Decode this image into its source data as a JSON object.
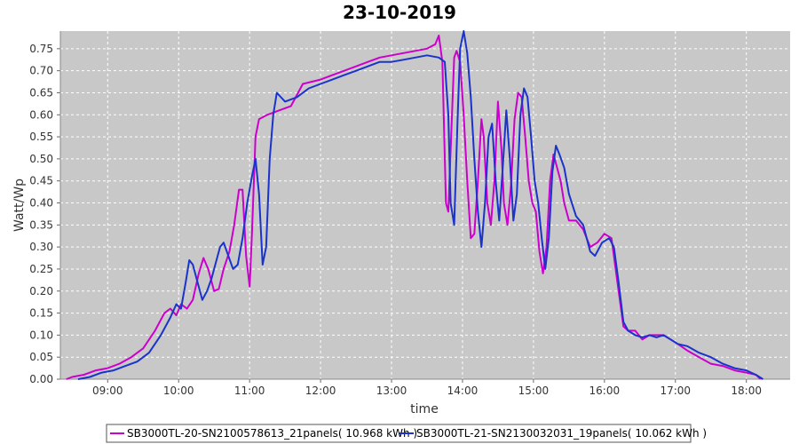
{
  "chart_data": {
    "type": "line",
    "title": "23-10-2019",
    "xlabel": "time",
    "ylabel": "Watt/Wp",
    "x_ticks": [
      "09:00",
      "10:00",
      "11:00",
      "12:00",
      "13:00",
      "14:00",
      "15:00",
      "16:00",
      "17:00",
      "18:00"
    ],
    "y_ticks": [
      "0.00",
      "0.05",
      "0.10",
      "0.15",
      "0.20",
      "0.25",
      "0.30",
      "0.35",
      "0.40",
      "0.45",
      "0.50",
      "0.55",
      "0.60",
      "0.65",
      "0.70",
      "0.75"
    ],
    "xlim": [
      "08:20",
      "18:37"
    ],
    "ylim": [
      0,
      0.79
    ],
    "grid": true,
    "legend_position": "bottom",
    "colors": {
      "plot_bg": "#c8c8c8",
      "grid": "#ffffff"
    },
    "series": [
      {
        "name": "SB3000TL-20-SN2100578613_21panels( 10.968 kWh )",
        "color": "#cc00cc",
        "points": [
          [
            "08:25",
            0.0
          ],
          [
            "08:30",
            0.005
          ],
          [
            "08:40",
            0.01
          ],
          [
            "08:50",
            0.02
          ],
          [
            "09:00",
            0.025
          ],
          [
            "09:10",
            0.035
          ],
          [
            "09:20",
            0.05
          ],
          [
            "09:30",
            0.07
          ],
          [
            "09:40",
            0.11
          ],
          [
            "09:48",
            0.15
          ],
          [
            "09:53",
            0.16
          ],
          [
            "09:58",
            0.145
          ],
          [
            "10:02",
            0.17
          ],
          [
            "10:07",
            0.16
          ],
          [
            "10:12",
            0.18
          ],
          [
            "10:17",
            0.24
          ],
          [
            "10:21",
            0.275
          ],
          [
            "10:25",
            0.25
          ],
          [
            "10:30",
            0.2
          ],
          [
            "10:34",
            0.205
          ],
          [
            "10:38",
            0.25
          ],
          [
            "10:43",
            0.29
          ],
          [
            "10:47",
            0.35
          ],
          [
            "10:51",
            0.43
          ],
          [
            "10:54",
            0.43
          ],
          [
            "10:57",
            0.28
          ],
          [
            "11:00",
            0.21
          ],
          [
            "11:02",
            0.33
          ],
          [
            "11:05",
            0.55
          ],
          [
            "11:08",
            0.59
          ],
          [
            "11:15",
            0.6
          ],
          [
            "11:25",
            0.61
          ],
          [
            "11:35",
            0.62
          ],
          [
            "11:45",
            0.67
          ],
          [
            "12:00",
            0.68
          ],
          [
            "12:10",
            0.69
          ],
          [
            "12:20",
            0.7
          ],
          [
            "12:30",
            0.71
          ],
          [
            "12:40",
            0.72
          ],
          [
            "12:50",
            0.73
          ],
          [
            "13:00",
            0.735
          ],
          [
            "13:10",
            0.74
          ],
          [
            "13:20",
            0.745
          ],
          [
            "13:30",
            0.75
          ],
          [
            "13:37",
            0.76
          ],
          [
            "13:40",
            0.78
          ],
          [
            "13:43",
            0.72
          ],
          [
            "13:46",
            0.4
          ],
          [
            "13:48",
            0.38
          ],
          [
            "13:50",
            0.52
          ],
          [
            "13:53",
            0.73
          ],
          [
            "13:55",
            0.745
          ],
          [
            "13:58",
            0.72
          ],
          [
            "14:01",
            0.6
          ],
          [
            "14:04",
            0.45
          ],
          [
            "14:07",
            0.32
          ],
          [
            "14:10",
            0.33
          ],
          [
            "14:13",
            0.45
          ],
          [
            "14:16",
            0.59
          ],
          [
            "14:18",
            0.55
          ],
          [
            "14:21",
            0.4
          ],
          [
            "14:24",
            0.35
          ],
          [
            "14:27",
            0.45
          ],
          [
            "14:30",
            0.63
          ],
          [
            "14:33",
            0.52
          ],
          [
            "14:35",
            0.4
          ],
          [
            "14:38",
            0.35
          ],
          [
            "14:41",
            0.44
          ],
          [
            "14:44",
            0.59
          ],
          [
            "14:47",
            0.65
          ],
          [
            "14:50",
            0.64
          ],
          [
            "14:53",
            0.55
          ],
          [
            "14:56",
            0.45
          ],
          [
            "14:59",
            0.4
          ],
          [
            "15:02",
            0.38
          ],
          [
            "15:05",
            0.29
          ],
          [
            "15:08",
            0.24
          ],
          [
            "15:11",
            0.3
          ],
          [
            "15:14",
            0.45
          ],
          [
            "15:17",
            0.51
          ],
          [
            "15:20",
            0.48
          ],
          [
            "15:23",
            0.45
          ],
          [
            "15:26",
            0.4
          ],
          [
            "15:30",
            0.36
          ],
          [
            "15:36",
            0.36
          ],
          [
            "15:42",
            0.34
          ],
          [
            "15:48",
            0.3
          ],
          [
            "15:54",
            0.31
          ],
          [
            "16:00",
            0.33
          ],
          [
            "16:06",
            0.32
          ],
          [
            "16:12",
            0.2
          ],
          [
            "16:16",
            0.12
          ],
          [
            "16:20",
            0.11
          ],
          [
            "16:26",
            0.11
          ],
          [
            "16:32",
            0.09
          ],
          [
            "16:38",
            0.1
          ],
          [
            "16:44",
            0.1
          ],
          [
            "16:50",
            0.1
          ],
          [
            "16:56",
            0.09
          ],
          [
            "17:02",
            0.08
          ],
          [
            "17:10",
            0.065
          ],
          [
            "17:20",
            0.05
          ],
          [
            "17:30",
            0.035
          ],
          [
            "17:40",
            0.03
          ],
          [
            "17:50",
            0.02
          ],
          [
            "18:00",
            0.015
          ],
          [
            "18:08",
            0.01
          ],
          [
            "18:12",
            0.0
          ]
        ]
      },
      {
        "name": "SB3000TL-21-SN2130032031_19panels( 10.062 kWh )",
        "color": "#1a33cc",
        "points": [
          [
            "08:35",
            0.0
          ],
          [
            "08:45",
            0.005
          ],
          [
            "08:55",
            0.015
          ],
          [
            "09:05",
            0.02
          ],
          [
            "09:15",
            0.03
          ],
          [
            "09:25",
            0.04
          ],
          [
            "09:35",
            0.06
          ],
          [
            "09:45",
            0.1
          ],
          [
            "09:53",
            0.14
          ],
          [
            "09:58",
            0.17
          ],
          [
            "10:02",
            0.16
          ],
          [
            "10:06",
            0.22
          ],
          [
            "10:09",
            0.27
          ],
          [
            "10:12",
            0.26
          ],
          [
            "10:16",
            0.22
          ],
          [
            "10:20",
            0.18
          ],
          [
            "10:24",
            0.2
          ],
          [
            "10:28",
            0.23
          ],
          [
            "10:31",
            0.26
          ],
          [
            "10:35",
            0.3
          ],
          [
            "10:38",
            0.31
          ],
          [
            "10:42",
            0.28
          ],
          [
            "10:46",
            0.25
          ],
          [
            "10:50",
            0.26
          ],
          [
            "10:54",
            0.32
          ],
          [
            "10:58",
            0.4
          ],
          [
            "11:02",
            0.46
          ],
          [
            "11:05",
            0.5
          ],
          [
            "11:08",
            0.42
          ],
          [
            "11:11",
            0.26
          ],
          [
            "11:14",
            0.3
          ],
          [
            "11:17",
            0.5
          ],
          [
            "11:20",
            0.6
          ],
          [
            "11:23",
            0.65
          ],
          [
            "11:30",
            0.63
          ],
          [
            "11:40",
            0.64
          ],
          [
            "11:50",
            0.66
          ],
          [
            "12:00",
            0.67
          ],
          [
            "12:10",
            0.68
          ],
          [
            "12:20",
            0.69
          ],
          [
            "12:30",
            0.7
          ],
          [
            "12:40",
            0.71
          ],
          [
            "12:50",
            0.72
          ],
          [
            "13:00",
            0.72
          ],
          [
            "13:10",
            0.725
          ],
          [
            "13:20",
            0.73
          ],
          [
            "13:30",
            0.735
          ],
          [
            "13:40",
            0.73
          ],
          [
            "13:45",
            0.72
          ],
          [
            "13:48",
            0.6
          ],
          [
            "13:50",
            0.4
          ],
          [
            "13:53",
            0.35
          ],
          [
            "13:56",
            0.6
          ],
          [
            "13:58",
            0.75
          ],
          [
            "14:01",
            0.79
          ],
          [
            "14:04",
            0.74
          ],
          [
            "14:07",
            0.64
          ],
          [
            "14:10",
            0.5
          ],
          [
            "14:13",
            0.38
          ],
          [
            "14:16",
            0.3
          ],
          [
            "14:19",
            0.4
          ],
          [
            "14:22",
            0.55
          ],
          [
            "14:25",
            0.58
          ],
          [
            "14:28",
            0.45
          ],
          [
            "14:31",
            0.36
          ],
          [
            "14:34",
            0.48
          ],
          [
            "14:37",
            0.61
          ],
          [
            "14:40",
            0.5
          ],
          [
            "14:43",
            0.36
          ],
          [
            "14:46",
            0.42
          ],
          [
            "14:49",
            0.6
          ],
          [
            "14:52",
            0.66
          ],
          [
            "14:55",
            0.64
          ],
          [
            "14:58",
            0.55
          ],
          [
            "15:01",
            0.45
          ],
          [
            "15:04",
            0.4
          ],
          [
            "15:07",
            0.32
          ],
          [
            "15:10",
            0.25
          ],
          [
            "15:13",
            0.32
          ],
          [
            "15:16",
            0.47
          ],
          [
            "15:19",
            0.53
          ],
          [
            "15:22",
            0.51
          ],
          [
            "15:26",
            0.48
          ],
          [
            "15:30",
            0.42
          ],
          [
            "15:36",
            0.37
          ],
          [
            "15:42",
            0.35
          ],
          [
            "15:48",
            0.29
          ],
          [
            "15:52",
            0.28
          ],
          [
            "15:58",
            0.31
          ],
          [
            "16:04",
            0.32
          ],
          [
            "16:08",
            0.3
          ],
          [
            "16:12",
            0.22
          ],
          [
            "16:16",
            0.13
          ],
          [
            "16:20",
            0.11
          ],
          [
            "16:26",
            0.1
          ],
          [
            "16:32",
            0.095
          ],
          [
            "16:38",
            0.1
          ],
          [
            "16:44",
            0.095
          ],
          [
            "16:50",
            0.1
          ],
          [
            "16:56",
            0.09
          ],
          [
            "17:02",
            0.08
          ],
          [
            "17:10",
            0.075
          ],
          [
            "17:20",
            0.06
          ],
          [
            "17:30",
            0.05
          ],
          [
            "17:40",
            0.035
          ],
          [
            "17:50",
            0.025
          ],
          [
            "18:00",
            0.02
          ],
          [
            "18:08",
            0.01
          ],
          [
            "18:14",
            0.0
          ]
        ]
      }
    ]
  }
}
